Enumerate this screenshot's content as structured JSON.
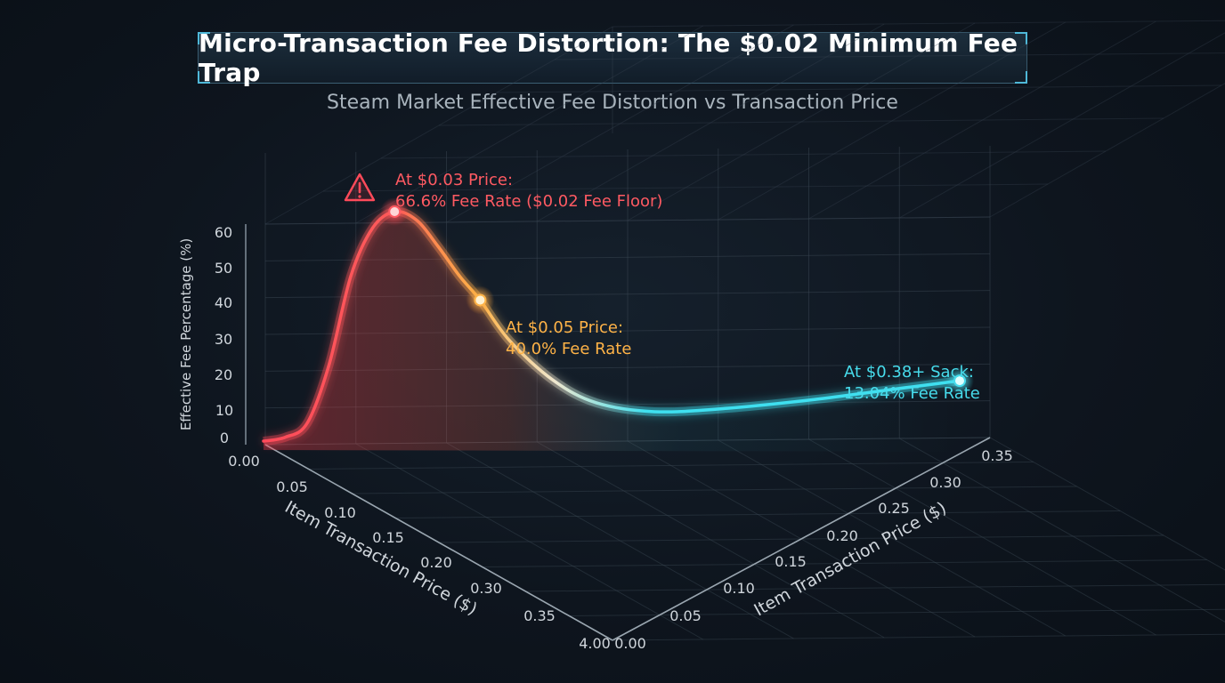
{
  "title": "Micro-Transaction Fee Distortion: The $0.02 Minimum Fee Trap",
  "subtitle": "Steam Market Effective Fee Distortion vs Transaction Price",
  "colors": {
    "background": "#0e151e",
    "grid": "#3a4652",
    "high_fee": "#ff4a5a",
    "mid_fee": "#ffb347",
    "low_fee": "#3fe0f0",
    "axis_text": "#d0d6dc"
  },
  "chart_data": {
    "type": "line",
    "title": "Steam Market Effective Fee Distortion vs Transaction Price",
    "ylabel": "Effective Fee Percentage (%)",
    "ylim": [
      0,
      60
    ],
    "yticks": [
      "0",
      "10",
      "20",
      "30",
      "40",
      "50",
      "60"
    ],
    "x_left_label": "Item Transaction Price ($)",
    "x_left_ticks": [
      "0.00",
      "0.05",
      "0.10",
      "0.15",
      "0.20",
      "0.30",
      "0.35",
      "4.00"
    ],
    "x_right_label": "Item Transaction Price ($)",
    "x_right_ticks": [
      "0.00",
      "0.05",
      "0.10",
      "0.15",
      "0.20",
      "0.25",
      "0.30",
      "0.35"
    ],
    "series": [
      {
        "x": [
          0.0,
          0.005,
          0.01,
          0.015,
          0.02,
          0.025,
          0.03,
          0.035,
          0.04,
          0.045,
          0.05,
          0.07,
          0.1,
          0.13,
          0.17,
          0.22,
          0.28,
          0.33,
          0.38
        ],
        "y": [
          0,
          1,
          5,
          22,
          48,
          62,
          66.6,
          64,
          56,
          47,
          40.0,
          28,
          16,
          9,
          6,
          6.5,
          8.5,
          10.8,
          13.04
        ]
      }
    ],
    "annotations": [
      {
        "x": 0.03,
        "y": 66.6,
        "line1": "At $0.03 Price:",
        "line2": "66.6% Fee Rate ($0.02 Fee Floor)",
        "color": "#ff5a62",
        "icon": "warning-triangle-icon"
      },
      {
        "x": 0.05,
        "y": 40.0,
        "line1": "At $0.05 Price:",
        "line2": "40.0% Fee Rate",
        "color": "#ffb347"
      },
      {
        "x": 0.38,
        "y": 13.04,
        "line1": "At $0.38+ Sack:",
        "line2": "13.04% Fee Rate",
        "color": "#47dcec"
      }
    ],
    "grid": true
  }
}
